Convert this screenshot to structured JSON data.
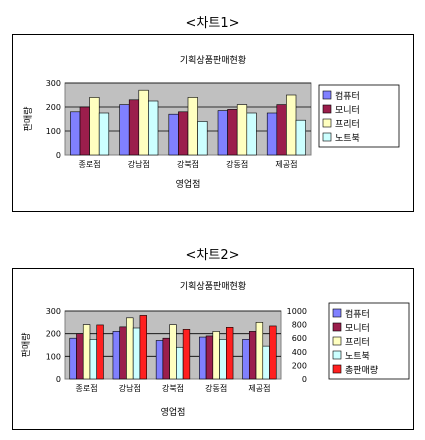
{
  "captions": {
    "chart1": "<차트1>",
    "chart2": "<차트2>"
  },
  "chart_data": [
    {
      "type": "bar",
      "title": "기획상품판매현황",
      "xlabel": "영업점",
      "ylabel": "판매량",
      "categories": [
        "종로점",
        "강남점",
        "강북점",
        "강동점",
        "제공점"
      ],
      "ylim": [
        0,
        300
      ],
      "yticks": [
        "0",
        "100",
        "200",
        "300"
      ],
      "grid": true,
      "legend": "right",
      "series": [
        {
          "name": "컴퓨터",
          "color": "#8080ff",
          "values": [
            180,
            210,
            170,
            185,
            175
          ]
        },
        {
          "name": "모니터",
          "color": "#9b1e4c",
          "values": [
            200,
            230,
            180,
            190,
            210
          ]
        },
        {
          "name": "프리터",
          "color": "#ffffc0",
          "values": [
            240,
            270,
            240,
            210,
            250
          ]
        },
        {
          "name": "노트북",
          "color": "#ccffff",
          "values": [
            175,
            225,
            140,
            175,
            145
          ]
        }
      ]
    },
    {
      "type": "bar",
      "title": "기획상품판매현황",
      "xlabel": "영업점",
      "ylabel": "판매량",
      "categories": [
        "종로점",
        "강남점",
        "강북점",
        "강동점",
        "제공점"
      ],
      "ylim": [
        0,
        300
      ],
      "yticks": [
        "0",
        "100",
        "200",
        "300"
      ],
      "y2lim": [
        0,
        1000
      ],
      "y2ticks": [
        "0",
        "200",
        "400",
        "600",
        "800",
        "1000"
      ],
      "grid": true,
      "legend": "right",
      "series": [
        {
          "name": "컴퓨터",
          "color": "#8080ff",
          "values": [
            180,
            210,
            170,
            185,
            175
          ]
        },
        {
          "name": "모니터",
          "color": "#9b1e4c",
          "values": [
            200,
            230,
            180,
            190,
            210
          ]
        },
        {
          "name": "프리터",
          "color": "#ffffc0",
          "values": [
            240,
            270,
            240,
            210,
            250
          ]
        },
        {
          "name": "노트북",
          "color": "#ccffff",
          "values": [
            175,
            225,
            140,
            175,
            145
          ]
        },
        {
          "name": "총판매량",
          "color": "#ff2020",
          "axis": "secondary",
          "values": [
            795,
            935,
            730,
            760,
            780
          ]
        }
      ]
    }
  ]
}
